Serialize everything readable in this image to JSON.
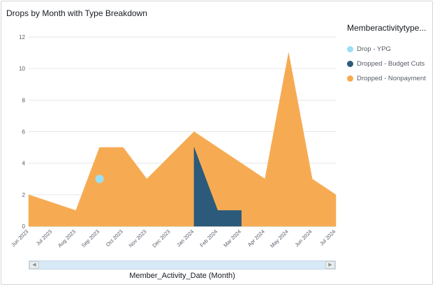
{
  "visual": {
    "title": "Drops by Month with Type Breakdown"
  },
  "chart_data": {
    "type": "area",
    "title": "Drops by Month with Type Breakdown",
    "xlabel": "Member_Activity_Date (Month)",
    "ylabel": "",
    "ylim": [
      0,
      12
    ],
    "yticks": [
      "0",
      "2",
      "4",
      "6",
      "8",
      "10",
      "12"
    ],
    "grid": true,
    "legend_position": "right",
    "legend_title": "Memberactivitytype...",
    "categories": [
      "Jun 2023",
      "Jul 2023",
      "Aug 2023",
      "Sep 2023",
      "Oct 2023",
      "Nov 2023",
      "Dec 2023",
      "Jan 2024",
      "Feb 2024",
      "Mar 2024",
      "Apr 2024",
      "May 2024",
      "Jun 2024",
      "Jul 2024"
    ],
    "series": [
      {
        "name": "Drop - YPG",
        "color": "#9bdff5",
        "mark": "point",
        "values": [
          null,
          null,
          null,
          3,
          null,
          null,
          null,
          null,
          null,
          null,
          null,
          null,
          null,
          null
        ]
      },
      {
        "name": "Dropped - Budget Cuts",
        "color": "#2c5a7a",
        "mark": "area",
        "values": [
          null,
          null,
          null,
          null,
          null,
          null,
          null,
          5,
          1,
          1,
          null,
          null,
          null,
          null
        ]
      },
      {
        "name": "Dropped - Nonpayment",
        "color": "#f6ab53",
        "mark": "area",
        "values": [
          2,
          1.5,
          1,
          5,
          5,
          3,
          4.5,
          6,
          5,
          4,
          3,
          11,
          3,
          2
        ]
      }
    ]
  },
  "scrollbar": {
    "left_arrow": "◀",
    "right_arrow": "▶"
  }
}
